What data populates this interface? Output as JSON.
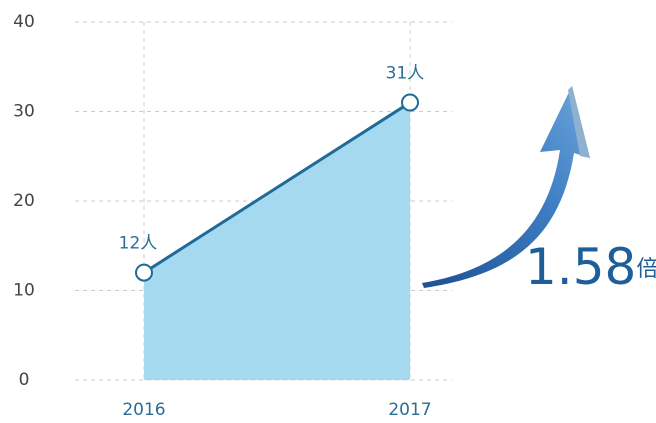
{
  "chart_data": {
    "type": "area",
    "categories": [
      "2016",
      "2017"
    ],
    "values": [
      12,
      31
    ],
    "value_labels": [
      "12人",
      "31人"
    ],
    "color": "#1f6a96",
    "fill_color": "#9fd7ee",
    "ylim": [
      0,
      40
    ],
    "yticks": [
      0,
      10,
      20,
      30,
      40
    ],
    "grid": true,
    "annotation_value": "1.58",
    "annotation_unit": "倍"
  }
}
